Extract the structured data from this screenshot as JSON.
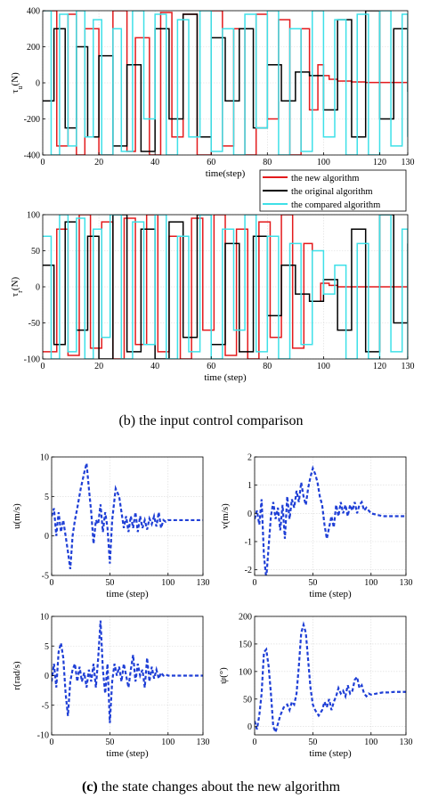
{
  "caption_b": "(b) the input control comparison",
  "caption_c": {
    "label": "(c)",
    "text": " the state changes about the new algorithm"
  },
  "legend": [
    {
      "label": "the new algorithm",
      "color": "#e31a1c"
    },
    {
      "label": "the original algorithm",
      "color": "#000000"
    },
    {
      "label": "the compared algorithm",
      "color": "#3ee0e8"
    }
  ],
  "chart_data": [
    {
      "id": "tau_u",
      "type": "line",
      "ylabel": "τu(N)",
      "xlabel": "time(step)",
      "xlim": [
        0,
        130
      ],
      "ylim": [
        -400,
        400
      ],
      "xticks": [
        0,
        20,
        40,
        60,
        80,
        100,
        120,
        130
      ],
      "yticks": [
        -400,
        -200,
        0,
        200,
        400
      ],
      "grid": true,
      "legend_position": "bottom-right, outside the plot",
      "series": [
        {
          "name": "the new algorithm",
          "color": "#e31a1c",
          "x": [
            0,
            5,
            9,
            12,
            15,
            20,
            25,
            30,
            33,
            38,
            42,
            46,
            50,
            55,
            60,
            64,
            68,
            72,
            76,
            80,
            84,
            88,
            92,
            95,
            98,
            100,
            102,
            105,
            110,
            115,
            120,
            125,
            130
          ],
          "y": [
            400,
            -350,
            380,
            -400,
            300,
            -400,
            400,
            -380,
            250,
            -400,
            390,
            -300,
            380,
            -400,
            400,
            -350,
            300,
            -400,
            380,
            -200,
            350,
            -400,
            300,
            -150,
            100,
            40,
            20,
            10,
            5,
            2,
            2,
            2,
            2
          ]
        },
        {
          "name": "the original algorithm",
          "color": "#000000",
          "x": [
            0,
            4,
            8,
            12,
            16,
            20,
            25,
            30,
            35,
            40,
            45,
            50,
            55,
            60,
            65,
            70,
            75,
            80,
            85,
            90,
            95,
            100,
            105,
            110,
            115,
            120,
            125,
            130
          ],
          "y": [
            -100,
            300,
            -250,
            200,
            -300,
            150,
            -350,
            100,
            -380,
            300,
            -200,
            380,
            -300,
            250,
            -100,
            300,
            -250,
            100,
            -100,
            60,
            40,
            -150,
            350,
            -300,
            400,
            -200,
            300,
            -50
          ]
        },
        {
          "name": "the compared algorithm",
          "color": "#3ee0e8",
          "x": [
            0,
            3,
            6,
            9,
            12,
            15,
            18,
            21,
            25,
            28,
            32,
            36,
            40,
            44,
            48,
            52,
            56,
            60,
            64,
            68,
            72,
            76,
            80,
            84,
            88,
            92,
            96,
            100,
            104,
            108,
            112,
            116,
            120,
            124,
            128,
            130
          ],
          "y": [
            400,
            -400,
            380,
            -350,
            400,
            -300,
            350,
            -400,
            300,
            -380,
            400,
            -200,
            380,
            -400,
            350,
            -300,
            400,
            -380,
            300,
            -400,
            380,
            -250,
            400,
            -400,
            300,
            -380,
            400,
            -300,
            350,
            -400,
            380,
            -400,
            400,
            -350,
            380,
            -300
          ]
        }
      ]
    },
    {
      "id": "tau_r",
      "type": "line",
      "ylabel": "τr(N)",
      "xlabel": "time (step)",
      "xlim": [
        0,
        130
      ],
      "ylim": [
        -100,
        100
      ],
      "xticks": [
        0,
        20,
        40,
        60,
        80,
        100,
        120,
        130
      ],
      "yticks": [
        -100,
        -50,
        0,
        50,
        100
      ],
      "grid": true,
      "series": [
        {
          "name": "the new algorithm",
          "color": "#e31a1c",
          "x": [
            0,
            5,
            9,
            13,
            17,
            21,
            25,
            29,
            33,
            37,
            41,
            45,
            49,
            53,
            57,
            61,
            65,
            69,
            73,
            77,
            81,
            85,
            89,
            93,
            96,
            99,
            102,
            105,
            110,
            115,
            120,
            125,
            130
          ],
          "y": [
            -90,
            80,
            -95,
            100,
            -85,
            90,
            -100,
            95,
            -80,
            100,
            -90,
            70,
            -100,
            95,
            -60,
            100,
            -95,
            80,
            -100,
            90,
            -70,
            100,
            -85,
            60,
            -20,
            5,
            2,
            0,
            0,
            0,
            0,
            0,
            0
          ]
        },
        {
          "name": "the original algorithm",
          "color": "#000000",
          "x": [
            0,
            4,
            8,
            12,
            16,
            20,
            25,
            30,
            35,
            40,
            45,
            50,
            55,
            60,
            65,
            70,
            75,
            80,
            85,
            90,
            95,
            100,
            105,
            110,
            115,
            120,
            125,
            130
          ],
          "y": [
            30,
            -80,
            90,
            -60,
            70,
            -100,
            100,
            -90,
            80,
            -100,
            90,
            -70,
            100,
            -80,
            60,
            -90,
            70,
            -40,
            30,
            -10,
            -20,
            10,
            -60,
            80,
            -90,
            100,
            -50,
            60
          ]
        },
        {
          "name": "the compared algorithm",
          "color": "#3ee0e8",
          "x": [
            0,
            3,
            6,
            9,
            12,
            15,
            18,
            21,
            24,
            28,
            32,
            36,
            40,
            44,
            48,
            52,
            56,
            60,
            64,
            68,
            72,
            76,
            80,
            84,
            88,
            92,
            96,
            100,
            104,
            108,
            112,
            116,
            120,
            124,
            128,
            130
          ],
          "y": [
            70,
            -100,
            100,
            -90,
            95,
            -100,
            80,
            -70,
            100,
            -100,
            90,
            -80,
            100,
            -100,
            70,
            -90,
            100,
            -100,
            80,
            -60,
            100,
            -90,
            70,
            -100,
            60,
            -80,
            50,
            -10,
            30,
            -100,
            60,
            -100,
            100,
            -90,
            80,
            -100
          ]
        }
      ]
    },
    {
      "id": "u",
      "type": "line",
      "ylabel": "u(m/s)",
      "xlabel": "time (step)",
      "xlim": [
        0,
        130
      ],
      "ylim": [
        -5,
        10
      ],
      "xticks": [
        0,
        50,
        100,
        130
      ],
      "yticks": [
        -5,
        0,
        5,
        10
      ],
      "grid": true,
      "series": [
        {
          "color": "#1f3fd6",
          "dashed": true,
          "x": [
            0,
            2,
            4,
            6,
            8,
            10,
            12,
            14,
            16,
            18,
            20,
            22,
            25,
            28,
            30,
            32,
            34,
            36,
            38,
            40,
            42,
            44,
            46,
            48,
            50,
            52,
            55,
            58,
            60,
            62,
            64,
            66,
            68,
            70,
            72,
            74,
            76,
            78,
            80,
            82,
            84,
            86,
            88,
            90,
            92,
            94,
            96,
            98,
            100,
            105,
            110,
            115,
            120,
            125,
            130
          ],
          "y": [
            2.5,
            3.5,
            0,
            3,
            0.5,
            2,
            0,
            -2,
            -4.2,
            0,
            2,
            3.5,
            6,
            8,
            9.2,
            6,
            3,
            -1,
            2,
            1.5,
            4,
            0.5,
            3,
            1,
            -3.5,
            2,
            6,
            5,
            3,
            1,
            2.5,
            0.5,
            2.5,
            1,
            3,
            0.5,
            2.5,
            1,
            2,
            0.8,
            2.2,
            1.5,
            2.5,
            1.2,
            3,
            1,
            2,
            1.8,
            2,
            2,
            2,
            2,
            2,
            2,
            2
          ]
        }
      ]
    },
    {
      "id": "v",
      "type": "line",
      "ylabel": "v(m/s)",
      "xlabel": "time (step)",
      "xlim": [
        0,
        130
      ],
      "ylim": [
        -2.2,
        2
      ],
      "xticks": [
        0,
        50,
        100,
        130
      ],
      "yticks": [
        -2,
        -1,
        0,
        1,
        2
      ],
      "grid": true,
      "series": [
        {
          "color": "#1f3fd6",
          "dashed": true,
          "x": [
            0,
            2,
            4,
            6,
            8,
            10,
            12,
            14,
            16,
            18,
            20,
            22,
            24,
            26,
            28,
            30,
            32,
            34,
            36,
            38,
            40,
            42,
            44,
            46,
            48,
            50,
            52,
            54,
            56,
            58,
            60,
            62,
            64,
            66,
            68,
            70,
            72,
            74,
            76,
            78,
            80,
            82,
            84,
            86,
            88,
            90,
            92,
            94,
            96,
            100,
            105,
            110,
            115,
            120,
            125,
            130
          ],
          "y": [
            -0.2,
            0.1,
            -0.4,
            0.5,
            -1.5,
            -2.3,
            -1.2,
            -0.1,
            0.4,
            -0.2,
            0.2,
            -0.6,
            0.3,
            -0.9,
            0.6,
            -0.2,
            0.5,
            0.2,
            0.8,
            0.4,
            1.1,
            0.6,
            0.3,
            0.9,
            1.3,
            1.6,
            1.4,
            1.1,
            0.6,
            0.3,
            -0.4,
            -0.9,
            -0.5,
            -0.1,
            -0.5,
            0.3,
            -0.1,
            0.4,
            0,
            0.3,
            -0.1,
            0.3,
            0.1,
            0.4,
            0,
            0.3,
            0.4,
            0.1,
            0.2,
            0,
            -0.05,
            -0.1,
            -0.1,
            -0.1,
            -0.1,
            -0.1
          ]
        }
      ]
    },
    {
      "id": "r",
      "type": "line",
      "ylabel": "r(rad/s)",
      "xlabel": "time (step)",
      "xlim": [
        0,
        130
      ],
      "ylim": [
        -10,
        10
      ],
      "xticks": [
        0,
        50,
        100,
        130
      ],
      "yticks": [
        -10,
        -5,
        0,
        5,
        10
      ],
      "grid": true,
      "series": [
        {
          "color": "#1f3fd6",
          "dashed": true,
          "x": [
            0,
            2,
            4,
            6,
            8,
            10,
            12,
            14,
            16,
            18,
            20,
            22,
            24,
            26,
            28,
            30,
            32,
            34,
            36,
            38,
            40,
            42,
            44,
            46,
            48,
            50,
            52,
            54,
            56,
            58,
            60,
            62,
            64,
            66,
            68,
            70,
            72,
            74,
            76,
            78,
            80,
            82,
            84,
            86,
            88,
            90,
            92,
            94,
            96,
            98,
            100,
            105,
            110,
            115,
            120,
            125,
            130
          ],
          "y": [
            -1,
            2,
            -2,
            4,
            5.5,
            3,
            -3,
            -6.8,
            -1,
            1,
            2,
            -1,
            1.5,
            -1,
            0.5,
            -2,
            1,
            -1,
            2,
            -2,
            3,
            9.3,
            1,
            -3,
            2,
            -8,
            -1,
            2,
            0,
            1.5,
            -1,
            2,
            0,
            -2,
            1,
            3.5,
            -1,
            2,
            0,
            1,
            -2,
            3,
            -1,
            1.5,
            -0.5,
            1,
            -0.5,
            0.5,
            0,
            0.2,
            0,
            0,
            0,
            0,
            0,
            0,
            0
          ]
        }
      ]
    },
    {
      "id": "psi",
      "type": "line",
      "ylabel": "ψ(°)",
      "xlabel": "time (step)",
      "xlim": [
        0,
        130
      ],
      "ylim": [
        -15,
        200
      ],
      "xticks": [
        0,
        50,
        100,
        130
      ],
      "yticks": [
        0,
        50,
        100,
        150,
        200
      ],
      "grid": true,
      "series": [
        {
          "color": "#1f3fd6",
          "dashed": true,
          "x": [
            0,
            2,
            4,
            6,
            8,
            10,
            12,
            14,
            16,
            18,
            20,
            22,
            25,
            28,
            30,
            32,
            34,
            36,
            38,
            40,
            42,
            44,
            46,
            48,
            50,
            52,
            55,
            58,
            60,
            62,
            64,
            66,
            68,
            70,
            72,
            74,
            76,
            78,
            80,
            82,
            84,
            86,
            88,
            90,
            92,
            94,
            96,
            98,
            100,
            105,
            110,
            115,
            120,
            125,
            130
          ],
          "y": [
            10,
            -5,
            20,
            60,
            135,
            140,
            110,
            60,
            0,
            -10,
            5,
            20,
            35,
            40,
            30,
            45,
            40,
            60,
            110,
            170,
            185,
            170,
            120,
            70,
            40,
            30,
            20,
            30,
            45,
            35,
            50,
            30,
            45,
            55,
            70,
            60,
            65,
            55,
            75,
            60,
            65,
            85,
            90,
            70,
            75,
            60,
            55,
            60,
            58,
            60,
            62,
            62,
            63,
            63,
            63
          ]
        }
      ]
    }
  ]
}
